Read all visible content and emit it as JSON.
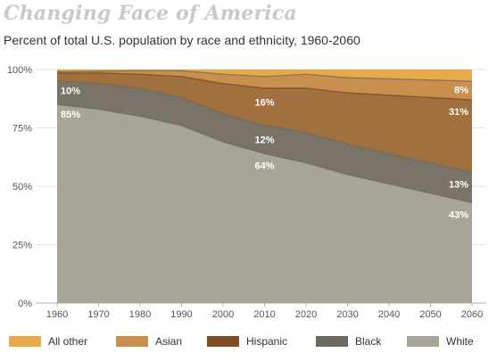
{
  "title": "Changing Face of America",
  "subtitle": "Percent of total U.S. population by race and ethnicity, 1960-2060",
  "chart_data": {
    "type": "area",
    "stacked": true,
    "x": [
      1960,
      1970,
      1980,
      1990,
      2000,
      2010,
      2020,
      2030,
      2040,
      2050,
      2060
    ],
    "xtick_labels": [
      "1960",
      "1970",
      "1980",
      "1990",
      "2000",
      "2010",
      "2020",
      "2030",
      "2040",
      "2050",
      "2060"
    ],
    "ylim": [
      0,
      100
    ],
    "ytick_labels": [
      "0%",
      "25%",
      "50%",
      "75%",
      "100%"
    ],
    "grid": true,
    "legend_position": "bottom",
    "series": [
      {
        "name": "White",
        "color": "#a8a598",
        "values": [
          85,
          83,
          80,
          76,
          69,
          64,
          60,
          55,
          51,
          47,
          43
        ]
      },
      {
        "name": "Black",
        "color": "#7a7468",
        "values": [
          10,
          11,
          12,
          12,
          12,
          12,
          13,
          13,
          13,
          13,
          13
        ]
      },
      {
        "name": "Hispanic",
        "color": "#a0703f",
        "values": [
          3.5,
          4.5,
          6,
          9,
          13,
          16,
          19,
          22,
          25,
          28,
          31
        ]
      },
      {
        "name": "Asian",
        "color": "#c88f4e",
        "values": [
          0.6,
          0.8,
          1.5,
          2.5,
          4,
          5,
          6,
          6.5,
          7,
          7.5,
          8
        ]
      },
      {
        "name": "All other",
        "color": "#e8aa48",
        "values": [
          0.9,
          0.7,
          0.5,
          0.5,
          2,
          3,
          2,
          3.5,
          4,
          4.5,
          5
        ]
      }
    ],
    "annotations": [
      {
        "text": "10%",
        "x": 1960,
        "y": 91,
        "anchor": "start"
      },
      {
        "text": "85%",
        "x": 1960,
        "y": 81,
        "anchor": "start"
      },
      {
        "text": "16%",
        "x": 2010,
        "y": 86,
        "anchor": "middle"
      },
      {
        "text": "12%",
        "x": 2010,
        "y": 70,
        "anchor": "middle"
      },
      {
        "text": "64%",
        "x": 2010,
        "y": 59,
        "anchor": "middle"
      },
      {
        "text": "8%",
        "x": 2060,
        "y": 91.5,
        "anchor": "end"
      },
      {
        "text": "31%",
        "x": 2060,
        "y": 82,
        "anchor": "end"
      },
      {
        "text": "13%",
        "x": 2060,
        "y": 51,
        "anchor": "end"
      },
      {
        "text": "43%",
        "x": 2060,
        "y": 38,
        "anchor": "end"
      }
    ]
  },
  "legend": [
    {
      "label": "All other",
      "color": "#e8aa48"
    },
    {
      "label": "Asian",
      "color": "#c88f4e"
    },
    {
      "label": "Hispanic",
      "color": "#7e4f25"
    },
    {
      "label": "Black",
      "color": "#6e695f"
    },
    {
      "label": "White",
      "color": "#a8a598"
    }
  ]
}
